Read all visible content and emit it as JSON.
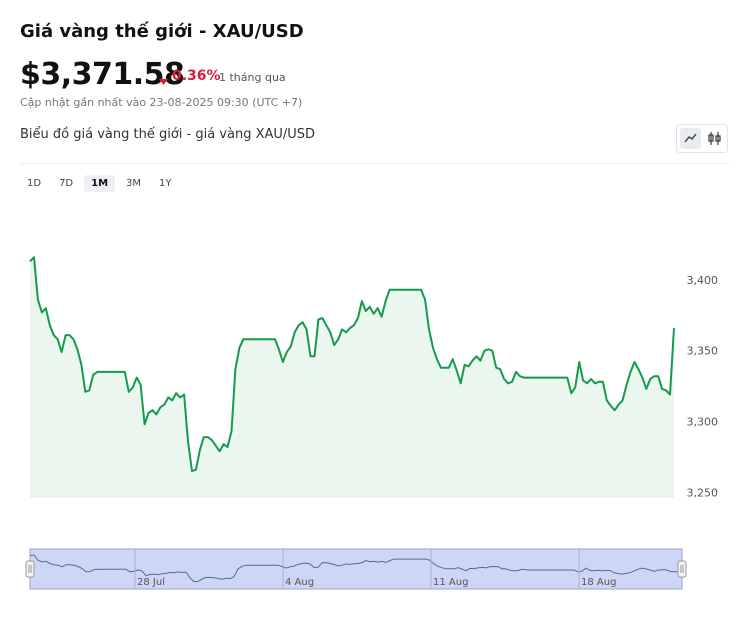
{
  "header": {
    "title": "Giá vàng thế giới - XAU/USD",
    "price": "$3,371.58",
    "change": "0.36%",
    "period": "1 tháng qua",
    "updated": "Cập nhật gần nhất vào 23-08-2025 09:30 (UTC +7)"
  },
  "chart_data": {
    "type": "area",
    "title": "Biểu đồ giá vàng thế giới - giá vàng XAU/USD",
    "ranges": [
      "1D",
      "7D",
      "1M",
      "3M",
      "1Y"
    ],
    "color": "#159a4e",
    "values": [
      3413,
      3416,
      3386,
      3377,
      3380,
      3368,
      3361,
      3358,
      3349,
      3361,
      3361,
      3358,
      3351,
      3340,
      3321,
      3322,
      3333,
      3335,
      3335,
      3335,
      3335,
      3335,
      3335,
      3335,
      3335,
      3321,
      3324,
      3331,
      3326,
      3298,
      3306,
      3308,
      3305,
      3310,
      3312,
      3317,
      3315,
      3320,
      3317,
      3319,
      3286,
      3265,
      3266,
      3280,
      3289,
      3289,
      3287,
      3283,
      3279,
      3284,
      3282,
      3293,
      3337,
      3352,
      3358,
      3358,
      3358,
      3358,
      3358,
      3358,
      3358,
      3358,
      3358,
      3351,
      3342,
      3349,
      3353,
      3363,
      3368,
      3370,
      3365,
      3346,
      3346,
      3372,
      3373,
      3368,
      3363,
      3354,
      3358,
      3365,
      3363,
      3366,
      3368,
      3373,
      3385,
      3378,
      3381,
      3376,
      3380,
      3374,
      3385,
      3393,
      3393,
      3393,
      3393,
      3393,
      3393,
      3393,
      3393,
      3393,
      3386,
      3365,
      3352,
      3344,
      3338,
      3338,
      3338,
      3344,
      3336,
      3327,
      3340,
      3339,
      3343,
      3346,
      3343,
      3350,
      3351,
      3350,
      3338,
      3337,
      3330,
      3327,
      3328,
      3335,
      3332,
      3331,
      3331,
      3331,
      3331,
      3331,
      3331,
      3331,
      3331,
      3331,
      3331,
      3331,
      3331,
      3320,
      3324,
      3342,
      3329,
      3327,
      3330,
      3327,
      3328,
      3328,
      3315,
      3311,
      3308,
      3312,
      3315,
      3326,
      3335,
      3342,
      3337,
      3331,
      3323,
      3330,
      3332,
      3332,
      3323,
      3322,
      3319,
      3366
    ],
    "ylim": [
      3246,
      3450
    ],
    "yticks": [
      {
        "value": 3250,
        "label": "3,250"
      },
      {
        "value": 3300,
        "label": "3,300"
      },
      {
        "value": 3350,
        "label": "3,350"
      },
      {
        "value": 3400,
        "label": "3,400"
      }
    ],
    "navigator_labels": [
      "28 Jul",
      "4 Aug",
      "11 Aug",
      "18 Aug"
    ]
  }
}
